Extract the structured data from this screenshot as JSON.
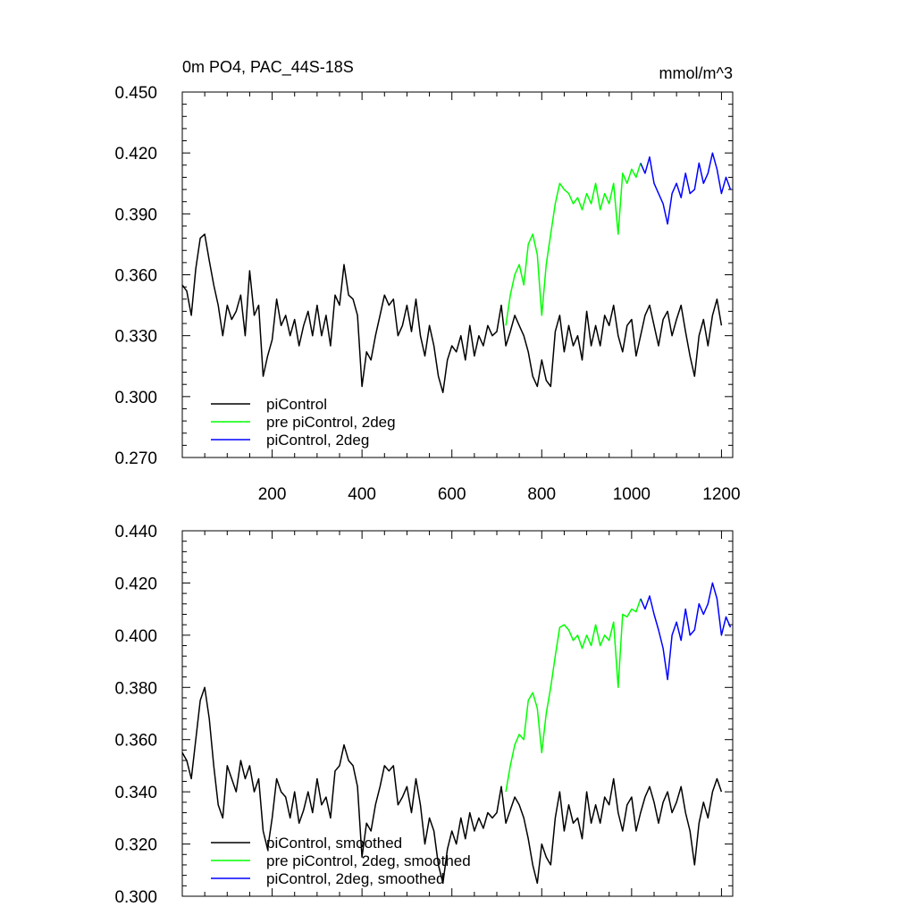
{
  "chart_data": [
    {
      "type": "line",
      "title": "0m PO4, PAC_44S-18S",
      "units": "mmol/m^3",
      "xlim": [
        0,
        1225
      ],
      "ylim": [
        0.27,
        0.45
      ],
      "xticks": [
        200,
        400,
        600,
        800,
        1000,
        1200
      ],
      "xtick_labels": [
        "200",
        "400",
        "600",
        "800",
        "1000",
        "1200"
      ],
      "yticks": [
        0.27,
        0.3,
        0.33,
        0.36,
        0.39,
        0.42,
        0.45
      ],
      "ytick_labels": [
        "0.270",
        "0.300",
        "0.330",
        "0.360",
        "0.390",
        "0.420",
        "0.450"
      ],
      "grid": false,
      "legend_position": "bottom-left",
      "series": [
        {
          "name": "piControl",
          "color": "#000000",
          "x": [
            0,
            10,
            20,
            30,
            40,
            50,
            60,
            70,
            80,
            90,
            100,
            110,
            120,
            130,
            140,
            150,
            160,
            170,
            180,
            190,
            200,
            210,
            220,
            230,
            240,
            250,
            260,
            270,
            280,
            290,
            300,
            310,
            320,
            330,
            340,
            350,
            360,
            370,
            380,
            390,
            400,
            410,
            420,
            430,
            440,
            450,
            460,
            470,
            480,
            490,
            500,
            510,
            520,
            530,
            540,
            550,
            560,
            570,
            580,
            590,
            600,
            610,
            620,
            630,
            640,
            650,
            660,
            670,
            680,
            690,
            700,
            710,
            720,
            730,
            740,
            750,
            760,
            770,
            780,
            790,
            800,
            810,
            820,
            830,
            840,
            850,
            860,
            870,
            880,
            890,
            900,
            910,
            920,
            930,
            940,
            950,
            960,
            970,
            980,
            990,
            1000,
            1010,
            1020,
            1030,
            1040,
            1050,
            1060,
            1070,
            1080,
            1090,
            1100,
            1110,
            1120,
            1130,
            1140,
            1150,
            1160,
            1170,
            1180,
            1190,
            1200
          ],
          "values": [
            0.355,
            0.352,
            0.34,
            0.363,
            0.378,
            0.38,
            0.367,
            0.355,
            0.345,
            0.33,
            0.345,
            0.338,
            0.342,
            0.35,
            0.33,
            0.362,
            0.34,
            0.345,
            0.31,
            0.32,
            0.328,
            0.348,
            0.335,
            0.34,
            0.33,
            0.338,
            0.325,
            0.335,
            0.342,
            0.33,
            0.345,
            0.33,
            0.34,
            0.325,
            0.35,
            0.345,
            0.365,
            0.35,
            0.348,
            0.34,
            0.305,
            0.322,
            0.318,
            0.33,
            0.34,
            0.35,
            0.345,
            0.348,
            0.33,
            0.335,
            0.345,
            0.332,
            0.348,
            0.33,
            0.32,
            0.335,
            0.325,
            0.31,
            0.302,
            0.318,
            0.325,
            0.322,
            0.33,
            0.318,
            0.335,
            0.32,
            0.33,
            0.325,
            0.335,
            0.33,
            0.332,
            0.345,
            0.325,
            0.332,
            0.34,
            0.335,
            0.33,
            0.322,
            0.31,
            0.305,
            0.318,
            0.308,
            0.305,
            0.332,
            0.34,
            0.322,
            0.335,
            0.325,
            0.33,
            0.318,
            0.342,
            0.325,
            0.335,
            0.325,
            0.34,
            0.335,
            0.345,
            0.33,
            0.322,
            0.335,
            0.338,
            0.32,
            0.33,
            0.34,
            0.345,
            0.335,
            0.325,
            0.338,
            0.342,
            0.33,
            0.338,
            0.345,
            0.332,
            0.32,
            0.31,
            0.33,
            0.338,
            0.325,
            0.34,
            0.348,
            0.335
          ]
        },
        {
          "name": "pre piControl, 2deg",
          "color": "#00ff00",
          "x": [
            720,
            730,
            740,
            750,
            760,
            770,
            780,
            790,
            800,
            810,
            820,
            830,
            840,
            850,
            860,
            870,
            880,
            890,
            900,
            910,
            920,
            930,
            940,
            950,
            960,
            970,
            980,
            990,
            1000,
            1010,
            1020
          ],
          "values": [
            0.335,
            0.35,
            0.36,
            0.365,
            0.355,
            0.375,
            0.38,
            0.37,
            0.34,
            0.365,
            0.38,
            0.395,
            0.405,
            0.402,
            0.4,
            0.395,
            0.398,
            0.392,
            0.4,
            0.395,
            0.405,
            0.392,
            0.4,
            0.395,
            0.405,
            0.38,
            0.41,
            0.405,
            0.412,
            0.408,
            0.415
          ]
        },
        {
          "name": "piControl, 2deg",
          "color": "#0000ff",
          "x": [
            1020,
            1030,
            1040,
            1050,
            1060,
            1070,
            1080,
            1090,
            1100,
            1110,
            1120,
            1130,
            1140,
            1150,
            1160,
            1170,
            1180,
            1190,
            1200,
            1210,
            1220
          ],
          "values": [
            0.415,
            0.41,
            0.418,
            0.405,
            0.4,
            0.395,
            0.385,
            0.4,
            0.405,
            0.398,
            0.41,
            0.4,
            0.402,
            0.415,
            0.405,
            0.41,
            0.42,
            0.412,
            0.4,
            0.408,
            0.402
          ]
        }
      ]
    },
    {
      "type": "line",
      "title": "",
      "units": "",
      "xlim": [
        0,
        1225
      ],
      "ylim": [
        0.3,
        0.44
      ],
      "xticks": [
        200,
        400,
        600,
        800,
        1000,
        1200
      ],
      "xtick_labels": [],
      "yticks": [
        0.3,
        0.32,
        0.34,
        0.36,
        0.38,
        0.4,
        0.42,
        0.44
      ],
      "ytick_labels": [
        "0.300",
        "0.320",
        "0.340",
        "0.360",
        "0.380",
        "0.400",
        "0.420",
        "0.440"
      ],
      "grid": false,
      "legend_position": "bottom-left",
      "series": [
        {
          "name": "piControl, smoothed",
          "color": "#000000",
          "x": [
            0,
            10,
            20,
            30,
            40,
            50,
            60,
            70,
            80,
            90,
            100,
            110,
            120,
            130,
            140,
            150,
            160,
            170,
            180,
            190,
            200,
            210,
            220,
            230,
            240,
            250,
            260,
            270,
            280,
            290,
            300,
            310,
            320,
            330,
            340,
            350,
            360,
            370,
            380,
            390,
            400,
            410,
            420,
            430,
            440,
            450,
            460,
            470,
            480,
            490,
            500,
            510,
            520,
            530,
            540,
            550,
            560,
            570,
            580,
            590,
            600,
            610,
            620,
            630,
            640,
            650,
            660,
            670,
            680,
            690,
            700,
            710,
            720,
            730,
            740,
            750,
            760,
            770,
            780,
            790,
            800,
            810,
            820,
            830,
            840,
            850,
            860,
            870,
            880,
            890,
            900,
            910,
            920,
            930,
            940,
            950,
            960,
            970,
            980,
            990,
            1000,
            1010,
            1020,
            1030,
            1040,
            1050,
            1060,
            1070,
            1080,
            1090,
            1100,
            1110,
            1120,
            1130,
            1140,
            1150,
            1160,
            1170,
            1180,
            1190,
            1200
          ],
          "values": [
            0.355,
            0.352,
            0.345,
            0.36,
            0.375,
            0.38,
            0.368,
            0.35,
            0.335,
            0.33,
            0.35,
            0.345,
            0.34,
            0.352,
            0.345,
            0.35,
            0.34,
            0.345,
            0.325,
            0.318,
            0.33,
            0.345,
            0.34,
            0.338,
            0.33,
            0.34,
            0.328,
            0.333,
            0.34,
            0.332,
            0.345,
            0.335,
            0.338,
            0.33,
            0.348,
            0.35,
            0.358,
            0.352,
            0.35,
            0.342,
            0.315,
            0.328,
            0.325,
            0.335,
            0.342,
            0.35,
            0.348,
            0.35,
            0.335,
            0.338,
            0.342,
            0.332,
            0.345,
            0.335,
            0.32,
            0.33,
            0.325,
            0.312,
            0.305,
            0.318,
            0.325,
            0.32,
            0.33,
            0.322,
            0.332,
            0.325,
            0.33,
            0.326,
            0.332,
            0.33,
            0.332,
            0.342,
            0.328,
            0.333,
            0.338,
            0.335,
            0.33,
            0.322,
            0.312,
            0.305,
            0.32,
            0.315,
            0.312,
            0.33,
            0.34,
            0.325,
            0.335,
            0.328,
            0.33,
            0.322,
            0.34,
            0.328,
            0.335,
            0.328,
            0.338,
            0.335,
            0.345,
            0.332,
            0.325,
            0.335,
            0.338,
            0.325,
            0.332,
            0.338,
            0.342,
            0.336,
            0.328,
            0.336,
            0.34,
            0.332,
            0.336,
            0.342,
            0.332,
            0.325,
            0.312,
            0.328,
            0.336,
            0.33,
            0.34,
            0.345,
            0.34
          ]
        },
        {
          "name": "pre piControl, 2deg, smoothed",
          "color": "#00ff00",
          "x": [
            720,
            730,
            740,
            750,
            760,
            770,
            780,
            790,
            800,
            810,
            820,
            830,
            840,
            850,
            860,
            870,
            880,
            890,
            900,
            910,
            920,
            930,
            940,
            950,
            960,
            970,
            980,
            990,
            1000,
            1010,
            1020
          ],
          "values": [
            0.34,
            0.35,
            0.358,
            0.362,
            0.36,
            0.375,
            0.378,
            0.372,
            0.355,
            0.37,
            0.38,
            0.392,
            0.403,
            0.404,
            0.402,
            0.398,
            0.4,
            0.395,
            0.4,
            0.396,
            0.404,
            0.396,
            0.4,
            0.398,
            0.405,
            0.38,
            0.408,
            0.407,
            0.41,
            0.409,
            0.414
          ]
        },
        {
          "name": "piControl, 2deg, smoothed",
          "color": "#0000ff",
          "x": [
            1020,
            1030,
            1040,
            1050,
            1060,
            1070,
            1080,
            1090,
            1100,
            1110,
            1120,
            1130,
            1140,
            1150,
            1160,
            1170,
            1180,
            1190,
            1200,
            1210,
            1220
          ],
          "values": [
            0.414,
            0.41,
            0.415,
            0.408,
            0.402,
            0.395,
            0.383,
            0.4,
            0.405,
            0.398,
            0.41,
            0.4,
            0.402,
            0.412,
            0.408,
            0.412,
            0.42,
            0.414,
            0.4,
            0.407,
            0.403
          ]
        }
      ]
    }
  ]
}
